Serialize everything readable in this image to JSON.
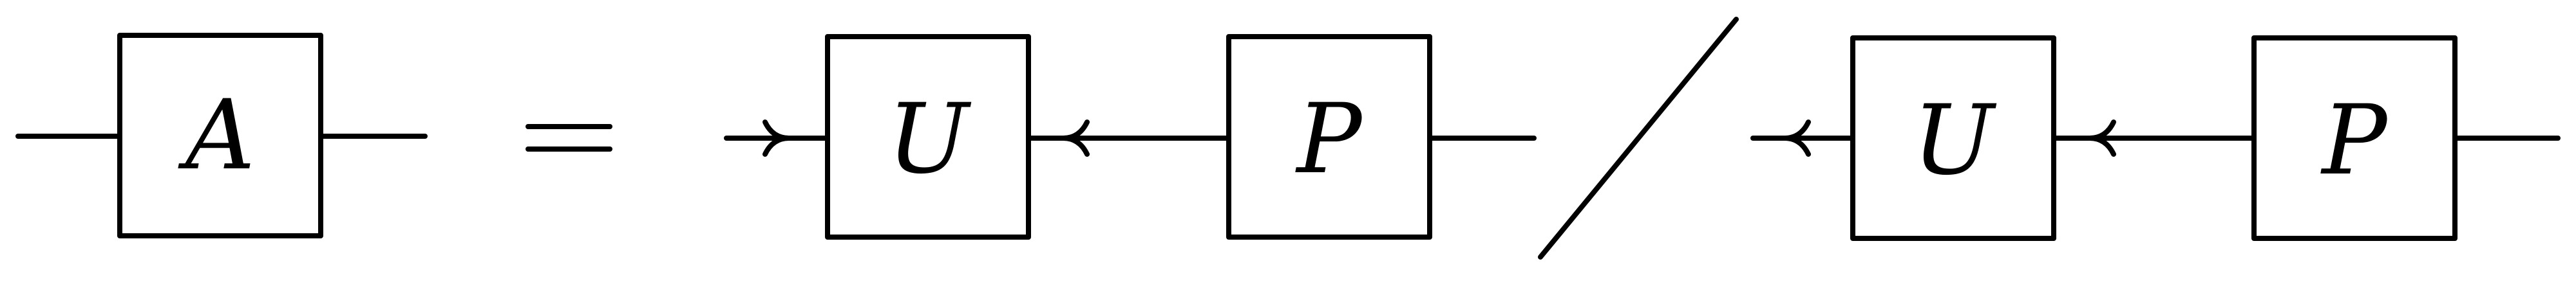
{
  "diagram": {
    "lhs": {
      "box_label": "A"
    },
    "relation": "=",
    "numerator": {
      "left_box_label": "U",
      "right_box_label": "P"
    },
    "denominator": {
      "left_box_label": "U",
      "right_box_label": "P"
    },
    "stroke_color": "#000000",
    "background_color": "#ffffff"
  }
}
